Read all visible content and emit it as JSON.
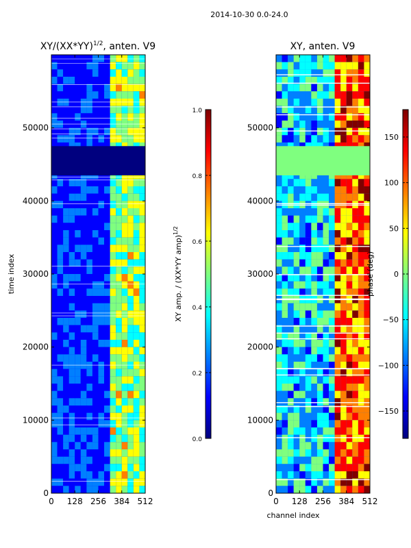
{
  "figure_title": "2014-10-30 0.0-24.0",
  "colors": {
    "jet": [
      "#00007f",
      "#0000ff",
      "#007fff",
      "#00ffff",
      "#7fff7f",
      "#ffff00",
      "#ff7f00",
      "#ff0000",
      "#7f0000"
    ],
    "axis": "#000000",
    "gap_band_amp": "#00007f",
    "gap_band_phase": "#7fff7f"
  },
  "chart_data": [
    {
      "type": "heatmap",
      "title_main": "XY/(XX*YY)",
      "title_sup": "1/2",
      "title_rest": ", anten. V9",
      "xlabel": "",
      "ylabel": "time index",
      "xlim": [
        0,
        512
      ],
      "ylim": [
        0,
        60000
      ],
      "x_ticks": [
        0,
        128,
        256,
        384,
        512
      ],
      "x_tick_labels": [
        "0",
        "128",
        "256",
        "384",
        "512"
      ],
      "y_ticks": [
        0,
        10000,
        20000,
        30000,
        40000,
        50000
      ],
      "y_tick_labels": [
        "0",
        "10000",
        "20000",
        "30000",
        "40000",
        "50000"
      ],
      "gap_band": [
        43500,
        47500
      ],
      "bright_channels": [
        330,
        512
      ],
      "colorbar": {
        "label_main": "XY amp. / (XX*YY amp)",
        "label_sup": "1/2",
        "range": [
          0.0,
          1.0
        ],
        "ticks": [
          0.0,
          0.2,
          0.4,
          0.6,
          0.8,
          1.0
        ],
        "tick_labels": [
          "0.0",
          "0.2",
          "0.4",
          "0.6",
          "0.8",
          "1.0"
        ]
      }
    },
    {
      "type": "heatmap",
      "title_main": "XY, anten. V9",
      "title_sup": "",
      "title_rest": "",
      "xlabel": "channel index",
      "ylabel": "",
      "xlim": [
        0,
        512
      ],
      "ylim": [
        0,
        60000
      ],
      "x_ticks": [
        0,
        128,
        256,
        384,
        512
      ],
      "x_tick_labels": [
        "0",
        "128",
        "256",
        "384",
        "512"
      ],
      "y_ticks": [
        0,
        10000,
        20000,
        30000,
        40000,
        50000
      ],
      "y_tick_labels": [
        "0",
        "10000",
        "20000",
        "30000",
        "40000",
        "50000"
      ],
      "gap_band": [
        43500,
        47500
      ],
      "bright_channels": [
        320,
        512
      ],
      "colorbar": {
        "label_main": "phase (deg)",
        "label_sup": "",
        "range": [
          -180,
          180
        ],
        "ticks": [
          -150,
          -100,
          -50,
          0,
          50,
          100,
          150
        ],
        "tick_labels": [
          "−150",
          "−100",
          "−50",
          "0",
          "50",
          "100",
          "150"
        ]
      }
    }
  ]
}
